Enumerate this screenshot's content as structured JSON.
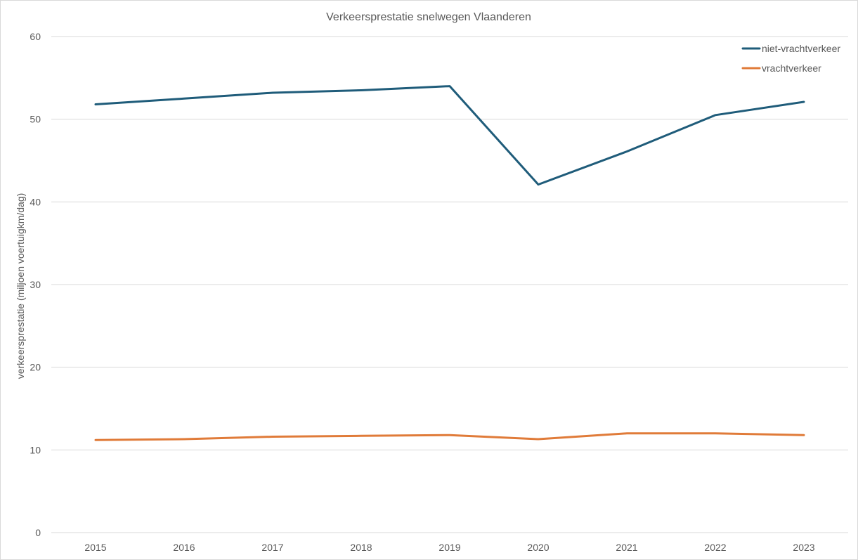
{
  "chart_data": {
    "type": "line",
    "title": "Verkeersprestatie snelwegen Vlaanderen",
    "xlabel": "",
    "ylabel": "verkeersprestatie (miljoen voertuigkm/dag)",
    "categories": [
      "2015",
      "2016",
      "2017",
      "2018",
      "2019",
      "2020",
      "2021",
      "2022",
      "2023"
    ],
    "ylim": [
      0,
      60
    ],
    "yticks": [
      0,
      10,
      20,
      30,
      40,
      50,
      60
    ],
    "grid": true,
    "legend_position": "top-right",
    "series": [
      {
        "name": "niet-vrachtverkeer",
        "color": "#1F5C7A",
        "values": [
          51.8,
          52.5,
          53.2,
          53.5,
          54.0,
          42.1,
          46.1,
          50.5,
          52.1
        ]
      },
      {
        "name": "vrachtverkeer",
        "color": "#E07B39",
        "values": [
          11.2,
          11.3,
          11.6,
          11.7,
          11.8,
          11.3,
          12.0,
          12.0,
          11.8
        ]
      }
    ]
  }
}
